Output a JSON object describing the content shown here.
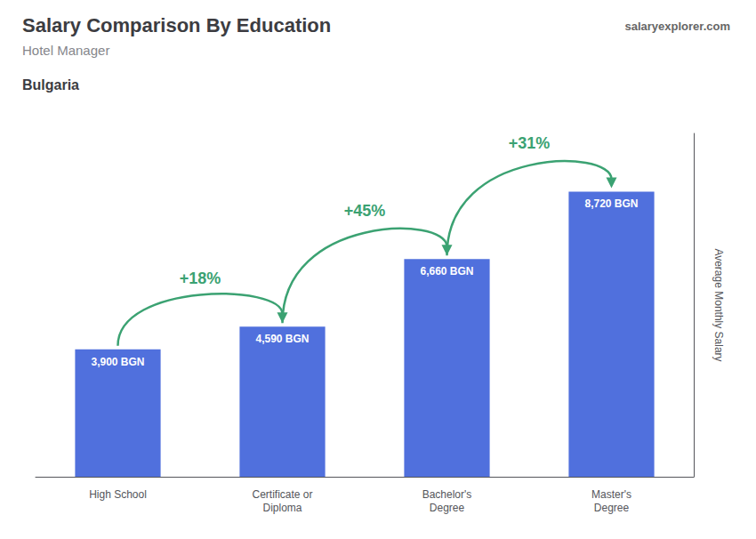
{
  "chart_data": {
    "type": "bar",
    "title": "Salary Comparison By Education",
    "subtitle": "Hotel Manager",
    "country": "Bulgaria",
    "source": "salaryexplorer.com",
    "ylabel": "Average Monthly Salary",
    "categories": [
      "High School",
      "Certificate or\nDiploma",
      "Bachelor's\nDegree",
      "Master's\nDegree"
    ],
    "values": [
      3900,
      4590,
      6660,
      8720
    ],
    "value_labels": [
      "3,900 BGN",
      "4,590 BGN",
      "6,660 BGN",
      "8,720 BGN"
    ],
    "data_labels": true,
    "annotations": [
      {
        "text": "+18%",
        "from": "High School",
        "to": "Certificate or\nDiploma"
      },
      {
        "text": "+45%",
        "from": "Certificate or\nDiploma",
        "to": "Bachelor's\nDegree"
      },
      {
        "text": "+31%",
        "from": "Bachelor's\nDegree",
        "to": "Master's\nDegree"
      }
    ],
    "ylim": [
      0,
      10500
    ],
    "tick_labels": "x",
    "grid": false
  }
}
